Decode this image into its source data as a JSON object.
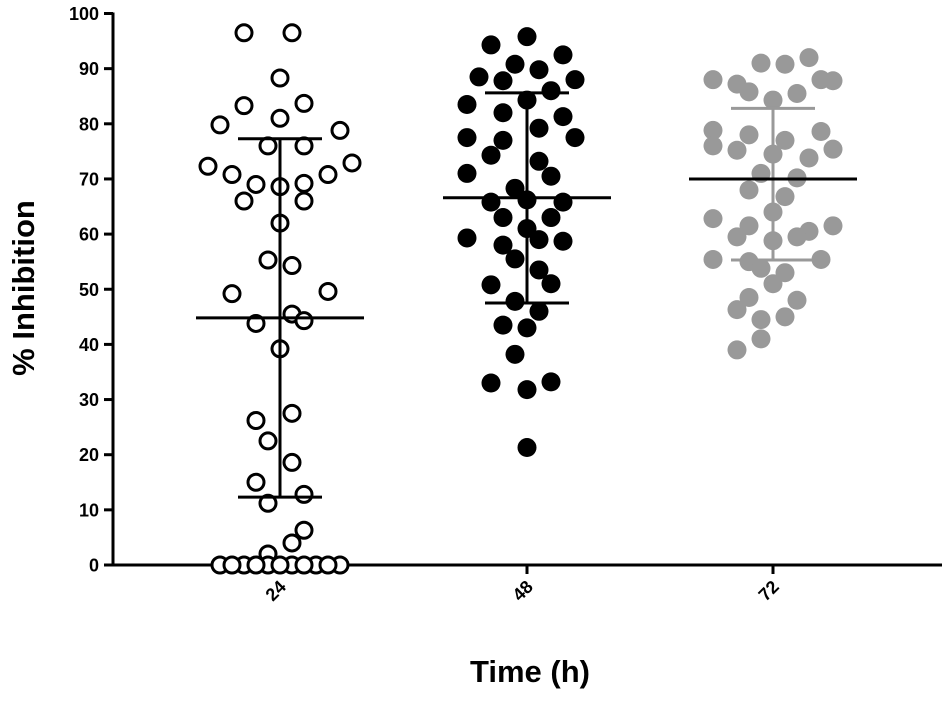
{
  "chart_data": {
    "type": "scatter",
    "chart_style": "dot-plot with mean and standard deviation bars",
    "xlabel": "Time (h)",
    "ylabel": "% Inhibition",
    "ylim": [
      0,
      100
    ],
    "yticks": [
      0,
      10,
      20,
      30,
      40,
      50,
      60,
      70,
      80,
      90,
      100
    ],
    "grid": false,
    "categories": [
      "24",
      "48",
      "72"
    ],
    "series": [
      {
        "category": "24",
        "marker": "open-circle",
        "color": "#000000",
        "mean": 44.8,
        "sd_lower": 12.3,
        "sd_upper": 77.3,
        "points": [
          {
            "offset": -1.5,
            "y": 96.5
          },
          {
            "offset": 0.5,
            "y": 96.5
          },
          {
            "offset": 0,
            "y": 88.3
          },
          {
            "offset": -1.5,
            "y": 83.3
          },
          {
            "offset": 0,
            "y": 81.0
          },
          {
            "offset": 1.0,
            "y": 83.7
          },
          {
            "offset": -2.5,
            "y": 79.8
          },
          {
            "offset": 2.5,
            "y": 78.8
          },
          {
            "offset": -0.5,
            "y": 76.0
          },
          {
            "offset": 1.0,
            "y": 76.0
          },
          {
            "offset": -3.0,
            "y": 72.3
          },
          {
            "offset": 3.0,
            "y": 72.9
          },
          {
            "offset": -2.0,
            "y": 70.8
          },
          {
            "offset": 2.0,
            "y": 70.8
          },
          {
            "offset": -1.0,
            "y": 69.0
          },
          {
            "offset": 0,
            "y": 68.6
          },
          {
            "offset": 1.0,
            "y": 69.2
          },
          {
            "offset": -1.5,
            "y": 66.0
          },
          {
            "offset": 1.0,
            "y": 66.0
          },
          {
            "offset": 0,
            "y": 62.0
          },
          {
            "offset": -0.5,
            "y": 55.3
          },
          {
            "offset": 0.5,
            "y": 54.3
          },
          {
            "offset": -2.0,
            "y": 49.2
          },
          {
            "offset": 2.0,
            "y": 49.6
          },
          {
            "offset": -1.0,
            "y": 43.8
          },
          {
            "offset": 0.5,
            "y": 45.5
          },
          {
            "offset": 1.0,
            "y": 44.3
          },
          {
            "offset": 0,
            "y": 39.2
          },
          {
            "offset": -1.0,
            "y": 26.2
          },
          {
            "offset": 0.5,
            "y": 27.5
          },
          {
            "offset": -0.5,
            "y": 22.5
          },
          {
            "offset": 0.5,
            "y": 18.6
          },
          {
            "offset": -1.0,
            "y": 15.0
          },
          {
            "offset": 1.0,
            "y": 12.8
          },
          {
            "offset": -0.5,
            "y": 11.2
          },
          {
            "offset": 1.0,
            "y": 6.3
          },
          {
            "offset": 0.5,
            "y": 4.0
          },
          {
            "offset": -0.5,
            "y": 2.0
          },
          {
            "offset": -2.5,
            "y": 0
          },
          {
            "offset": -1.5,
            "y": 0
          },
          {
            "offset": -0.5,
            "y": 0
          },
          {
            "offset": 0.5,
            "y": 0
          },
          {
            "offset": 1.5,
            "y": 0
          },
          {
            "offset": 2.5,
            "y": 0
          },
          {
            "offset": -2.0,
            "y": 0
          },
          {
            "offset": -1.0,
            "y": 0
          },
          {
            "offset": 0,
            "y": 0
          },
          {
            "offset": 1.0,
            "y": 0
          },
          {
            "offset": 2.0,
            "y": 0
          }
        ]
      },
      {
        "category": "48",
        "marker": "filled-circle",
        "color": "#000000",
        "mean": 66.6,
        "sd_lower": 47.5,
        "sd_upper": 85.6,
        "points": [
          {
            "offset": 0,
            "y": 95.8
          },
          {
            "offset": -1.5,
            "y": 94.3
          },
          {
            "offset": 1.5,
            "y": 92.5
          },
          {
            "offset": -0.5,
            "y": 90.8
          },
          {
            "offset": 0.5,
            "y": 89.8
          },
          {
            "offset": -2.0,
            "y": 88.5
          },
          {
            "offset": -1.0,
            "y": 87.8
          },
          {
            "offset": 2.0,
            "y": 88.0
          },
          {
            "offset": 0,
            "y": 84.3
          },
          {
            "offset": -2.5,
            "y": 83.5
          },
          {
            "offset": 1.0,
            "y": 86.0
          },
          {
            "offset": -1.0,
            "y": 82.0
          },
          {
            "offset": 1.5,
            "y": 81.3
          },
          {
            "offset": 0.5,
            "y": 79.2
          },
          {
            "offset": -2.5,
            "y": 77.5
          },
          {
            "offset": -1.0,
            "y": 77.0
          },
          {
            "offset": 2.0,
            "y": 77.5
          },
          {
            "offset": -1.5,
            "y": 74.3
          },
          {
            "offset": 0.5,
            "y": 73.2
          },
          {
            "offset": -2.5,
            "y": 71.0
          },
          {
            "offset": 1.0,
            "y": 70.5
          },
          {
            "offset": -0.5,
            "y": 68.3
          },
          {
            "offset": -1.5,
            "y": 65.8
          },
          {
            "offset": 0,
            "y": 66.2
          },
          {
            "offset": 1.5,
            "y": 65.8
          },
          {
            "offset": -1.0,
            "y": 63.0
          },
          {
            "offset": 1.0,
            "y": 63.0
          },
          {
            "offset": 0,
            "y": 61.0
          },
          {
            "offset": -2.5,
            "y": 59.3
          },
          {
            "offset": -1.0,
            "y": 58.0
          },
          {
            "offset": 0.5,
            "y": 59.0
          },
          {
            "offset": 1.5,
            "y": 58.7
          },
          {
            "offset": -0.5,
            "y": 55.5
          },
          {
            "offset": 0.5,
            "y": 53.5
          },
          {
            "offset": -1.5,
            "y": 50.8
          },
          {
            "offset": 1.0,
            "y": 51.0
          },
          {
            "offset": -0.5,
            "y": 47.8
          },
          {
            "offset": 0.5,
            "y": 46.0
          },
          {
            "offset": -1.0,
            "y": 43.5
          },
          {
            "offset": 0,
            "y": 43.0
          },
          {
            "offset": -0.5,
            "y": 38.2
          },
          {
            "offset": -1.5,
            "y": 33.0
          },
          {
            "offset": 0,
            "y": 31.8
          },
          {
            "offset": 1.0,
            "y": 33.2
          },
          {
            "offset": 0,
            "y": 21.3
          }
        ]
      },
      {
        "category": "72",
        "marker": "filled-circle",
        "color": "#999999",
        "mean": 70.0,
        "sd_lower": 55.3,
        "sd_upper": 82.8,
        "points": [
          {
            "offset": -0.5,
            "y": 91.0
          },
          {
            "offset": 1.5,
            "y": 92.0
          },
          {
            "offset": 0.5,
            "y": 90.8
          },
          {
            "offset": -2.5,
            "y": 88.0
          },
          {
            "offset": -1.5,
            "y": 87.2
          },
          {
            "offset": 2.0,
            "y": 88.0
          },
          {
            "offset": 2.5,
            "y": 87.8
          },
          {
            "offset": -1.0,
            "y": 85.8
          },
          {
            "offset": 0,
            "y": 84.3
          },
          {
            "offset": 1.0,
            "y": 85.5
          },
          {
            "offset": -2.5,
            "y": 78.8
          },
          {
            "offset": -1.0,
            "y": 78.0
          },
          {
            "offset": 0.5,
            "y": 77.0
          },
          {
            "offset": 2.0,
            "y": 78.6
          },
          {
            "offset": -2.5,
            "y": 76.0
          },
          {
            "offset": -1.5,
            "y": 75.2
          },
          {
            "offset": 0,
            "y": 74.5
          },
          {
            "offset": 1.5,
            "y": 73.8
          },
          {
            "offset": 2.5,
            "y": 75.4
          },
          {
            "offset": -0.5,
            "y": 71.0
          },
          {
            "offset": 1.0,
            "y": 70.2
          },
          {
            "offset": -1.0,
            "y": 68.0
          },
          {
            "offset": 0.5,
            "y": 66.8
          },
          {
            "offset": 0,
            "y": 64.0
          },
          {
            "offset": -2.5,
            "y": 62.8
          },
          {
            "offset": -1.0,
            "y": 61.5
          },
          {
            "offset": 1.5,
            "y": 60.5
          },
          {
            "offset": 2.5,
            "y": 61.5
          },
          {
            "offset": -1.5,
            "y": 59.5
          },
          {
            "offset": 0,
            "y": 58.8
          },
          {
            "offset": 1.0,
            "y": 59.5
          },
          {
            "offset": -2.5,
            "y": 55.4
          },
          {
            "offset": -1.0,
            "y": 55.0
          },
          {
            "offset": 2.0,
            "y": 55.4
          },
          {
            "offset": -0.5,
            "y": 53.8
          },
          {
            "offset": 0.5,
            "y": 53.0
          },
          {
            "offset": 0,
            "y": 51.0
          },
          {
            "offset": -1.0,
            "y": 48.5
          },
          {
            "offset": 1.0,
            "y": 48.0
          },
          {
            "offset": -1.5,
            "y": 46.3
          },
          {
            "offset": -0.5,
            "y": 44.5
          },
          {
            "offset": 0.5,
            "y": 45.0
          },
          {
            "offset": -1.5,
            "y": 39.0
          },
          {
            "offset": -0.5,
            "y": 41.0
          }
        ]
      }
    ]
  }
}
